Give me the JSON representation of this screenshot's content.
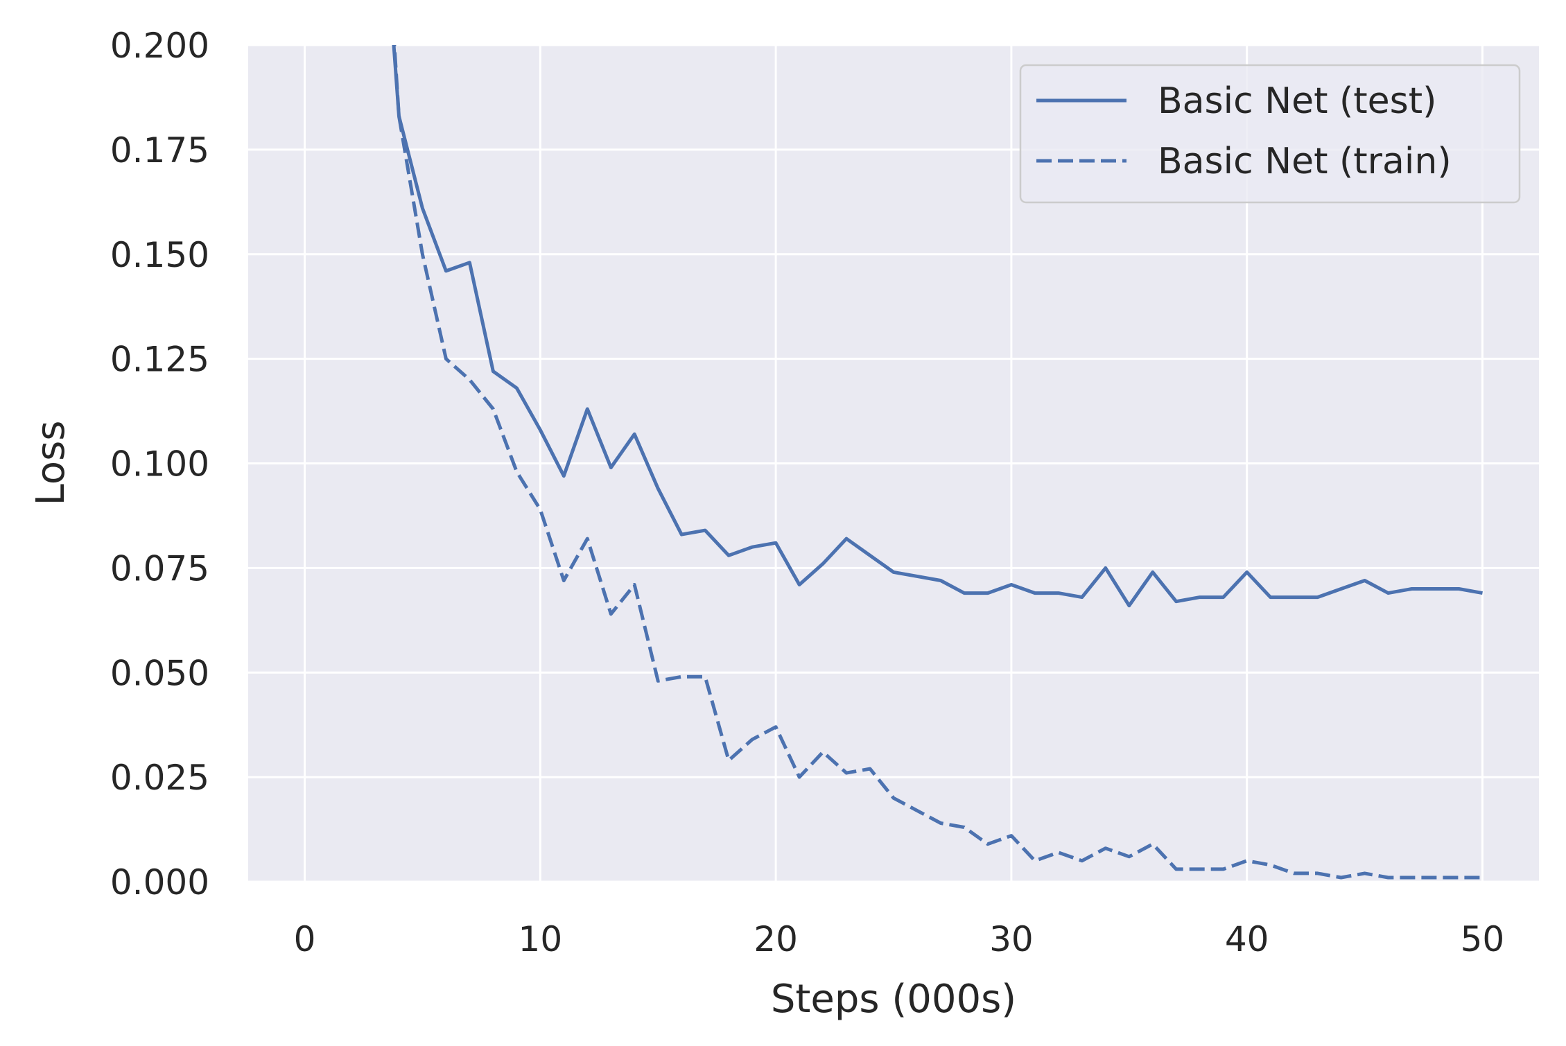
{
  "chart_data": {
    "type": "line",
    "xlabel": "Steps (000s)",
    "ylabel": "Loss",
    "xlim": [
      -2.4,
      52.4
    ],
    "ylim": [
      0,
      0.2
    ],
    "xticks": [
      "0",
      "10",
      "20",
      "30",
      "40",
      "50"
    ],
    "xtick_values": [
      0,
      10,
      20,
      30,
      40,
      50
    ],
    "yticks": [
      "0.000",
      "0.025",
      "0.050",
      "0.075",
      "0.100",
      "0.125",
      "0.150",
      "0.175",
      "0.200"
    ],
    "ytick_values": [
      0,
      0.025,
      0.05,
      0.075,
      0.1,
      0.125,
      0.15,
      0.175,
      0.2
    ],
    "grid": true,
    "legend_position": "upper-right",
    "series": [
      {
        "name": "Basic Net (test)",
        "style": "solid",
        "color": "#4c72b0",
        "x": [
          3,
          4,
          5,
          6,
          7,
          8,
          9,
          10,
          11,
          12,
          13,
          14,
          15,
          16,
          17,
          18,
          19,
          20,
          21,
          22,
          23,
          24,
          25,
          26,
          27,
          28,
          29,
          30,
          31,
          32,
          33,
          34,
          35,
          36,
          37,
          38,
          39,
          40,
          41,
          42,
          43,
          44,
          45,
          46,
          47,
          48,
          49,
          50
        ],
        "y": [
          0.26,
          0.183,
          0.161,
          0.146,
          0.148,
          0.122,
          0.118,
          0.108,
          0.097,
          0.113,
          0.099,
          0.107,
          0.094,
          0.083,
          0.084,
          0.078,
          0.08,
          0.081,
          0.071,
          0.076,
          0.082,
          0.078,
          0.074,
          0.073,
          0.072,
          0.069,
          0.069,
          0.071,
          0.069,
          0.069,
          0.068,
          0.075,
          0.066,
          0.074,
          0.067,
          0.068,
          0.068,
          0.074,
          0.068,
          0.068,
          0.068,
          0.07,
          0.072,
          0.069,
          0.07,
          0.07,
          0.07,
          0.069
        ]
      },
      {
        "name": "Basic Net (train)",
        "style": "dashed",
        "color": "#4c72b0",
        "x": [
          3,
          4,
          5,
          6,
          7,
          8,
          9,
          10,
          11,
          12,
          13,
          14,
          15,
          16,
          17,
          18,
          19,
          20,
          21,
          22,
          23,
          24,
          25,
          26,
          27,
          28,
          29,
          30,
          31,
          32,
          33,
          34,
          35,
          36,
          37,
          38,
          39,
          40,
          41,
          42,
          43,
          44,
          45,
          46,
          47,
          48,
          49,
          50
        ],
        "y": [
          0.27,
          0.183,
          0.15,
          0.125,
          0.12,
          0.113,
          0.098,
          0.089,
          0.072,
          0.082,
          0.064,
          0.071,
          0.048,
          0.049,
          0.049,
          0.029,
          0.034,
          0.037,
          0.025,
          0.031,
          0.026,
          0.027,
          0.02,
          0.017,
          0.014,
          0.013,
          0.009,
          0.011,
          0.005,
          0.007,
          0.005,
          0.008,
          0.006,
          0.009,
          0.003,
          0.003,
          0.003,
          0.005,
          0.004,
          0.002,
          0.002,
          0.001,
          0.002,
          0.001,
          0.001,
          0.001,
          0.001,
          0.001
        ]
      }
    ]
  },
  "colors": {
    "plot_background": "#eaeaf2",
    "grid": "#ffffff",
    "text": "#262626",
    "legend_border": "#cccccc"
  }
}
